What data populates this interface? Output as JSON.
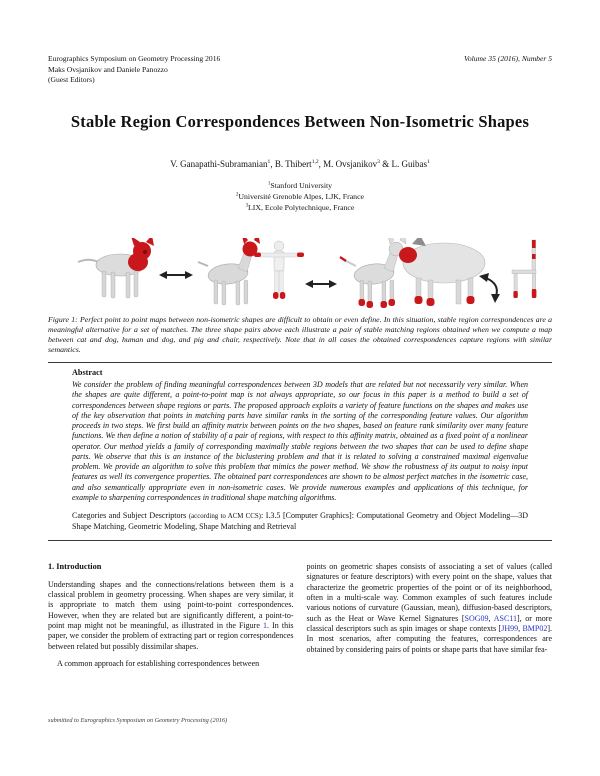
{
  "header": {
    "left_line1": "Eurographics Symposium on Geometry Processing 2016",
    "left_line2": "Maks Ovsjanikov and Daniele Panozzo",
    "left_line3": "(Guest Editors)",
    "right": "Volume 35 (2016), Number 5"
  },
  "title": "Stable Region Correspondences Between Non-Isometric Shapes",
  "authors_segments": [
    {
      "t": "V. Ganapathi-Subramanian"
    },
    {
      "t": "1",
      "c": "sup"
    },
    {
      "t": ", B. Thibert"
    },
    {
      "t": "1,2",
      "c": "sup"
    },
    {
      "t": ", M. Ovsjanikov"
    },
    {
      "t": "3",
      "c": "sup"
    },
    {
      "t": " & L. Guibas"
    },
    {
      "t": "1",
      "c": "sup"
    }
  ],
  "affiliations": {
    "line1_segments": [
      {
        "t": "1",
        "c": "sup"
      },
      {
        "t": "Stanford University"
      }
    ],
    "line2_segments": [
      {
        "t": "2",
        "c": "sup"
      },
      {
        "t": "Université Grenoble Alpes, LJK, France"
      }
    ],
    "line3_segments": [
      {
        "t": "3",
        "c": "sup"
      },
      {
        "t": "LIX, Ecole Polytechnique, France"
      }
    ]
  },
  "figure": {
    "shapes": [
      "cat-with-red-head",
      "dog-with-red-head",
      "human-with-red-hands-and-feet",
      "dog-with-red-paws",
      "pig-with-red-snout-and-feet",
      "chair-with-red-legs"
    ],
    "caption_label": "Figure 1: ",
    "caption_text": "Perfect point to point maps between non-isometric shapes are difficult to obtain or even define. In this situation, stable region correspondences are a meaningful alternative for a set of matches. The three shape pairs above each illustrate a pair of stable matching regions obtained when we compute a map between cat and dog, human and dog, and pig and chair, respectively. Note that in all cases the obtained correspondences capture regions with similar semantics."
  },
  "abstract": {
    "heading": "Abstract",
    "body": "We consider the problem of finding meaningful correspondences between 3D models that are related but not necessarily very similar. When the shapes are quite different, a point-to-point map is not always appropriate, so our focus in this paper is a method to build a set of correspondences between shape regions or parts. The proposed approach exploits a variety of feature functions on the shapes and makes use of the key observation that points in matching parts have similar ranks in the sorting of the corresponding feature values. Our algorithm proceeds in two steps. We first build an affinity matrix between points on the two shapes, based on feature rank similarity over many feature functions. We then define a notion of stability of a pair of regions, with respect to this affinity matrix, obtained as a fixed point of a nonlinear operator. Our method yields a family of corresponding maximally stable regions between the two shapes that can be used to define shape parts. We observe that this is an instance of the biclustering problem and that it is related to solving a constrained maximal eigenvalue problem. We provide an algorithm to solve this problem that mimics the power method. We show the robustness of its output to noisy input features as well its convergence properties. The obtained part correspondences are shown to be almost perfect matches in the isometric case, and also semantically appropriate even in non-isometric cases. We provide numerous examples and applications of this technique, for example to sharpening correspondences in traditional shape matching algorithms.",
    "categories_segments": [
      {
        "t": "Categories and Subject Descriptors "
      },
      {
        "t": "(according to ACM CCS)",
        "c": "small"
      },
      {
        "t": ": I.3.5 [Computer Graphics]: Computational Geometry and Object Modeling—3D Shape Matching, Geometric Modeling, Shape Matching and Retrieval"
      }
    ]
  },
  "body": {
    "intro_heading": "1. Introduction",
    "left_par1_segments": [
      {
        "t": "Understanding shapes and the connections/relations between them is a classical problem in geometry processing. When shapes are very similar, it is appropriate to match them using point-to-point correspondences. However, when they are related but are significantly different, a point-to-point map might not be meaningful, as illustrated in the Figure "
      },
      {
        "t": "1",
        "c": "link"
      },
      {
        "t": ". In this paper, we consider the problem of extracting part or region correspondences between related but possibly dissimilar shapes."
      }
    ],
    "left_par2": "A common approach for establishing correspondences between",
    "right_par_segments": [
      {
        "t": "points on geometric shapes consists of associating a set of values (called signatures or feature descriptors) with every point on the shape, values that characterize the geometric properties of the point or of its neighborhood, often in a multi-scale way. Common examples of such features include various notions of curvature (Gaussian, mean), diffusion-based descriptors, such as the Heat or Wave Kernel Signatures ["
      },
      {
        "t": "SOG09",
        "c": "link"
      },
      {
        "t": ", "
      },
      {
        "t": "ASC11",
        "c": "link"
      },
      {
        "t": "], or more classical descriptors such as spin images or shape contexts ["
      },
      {
        "t": "JH99",
        "c": "link"
      },
      {
        "t": ", "
      },
      {
        "t": "BMP02",
        "c": "link"
      },
      {
        "t": "]. In most scenarios, after computing the features, correspondences are obtained by considering pairs of points or shape parts that have similar fea-"
      }
    ]
  },
  "footer": "submitted to Eurographics Symposium on Geometry Processing (2016)",
  "colors": {
    "text": "#121212",
    "link_blue": "#2735c4",
    "region_red": "#c8181c",
    "shape_gray": "#dcdcdc"
  }
}
